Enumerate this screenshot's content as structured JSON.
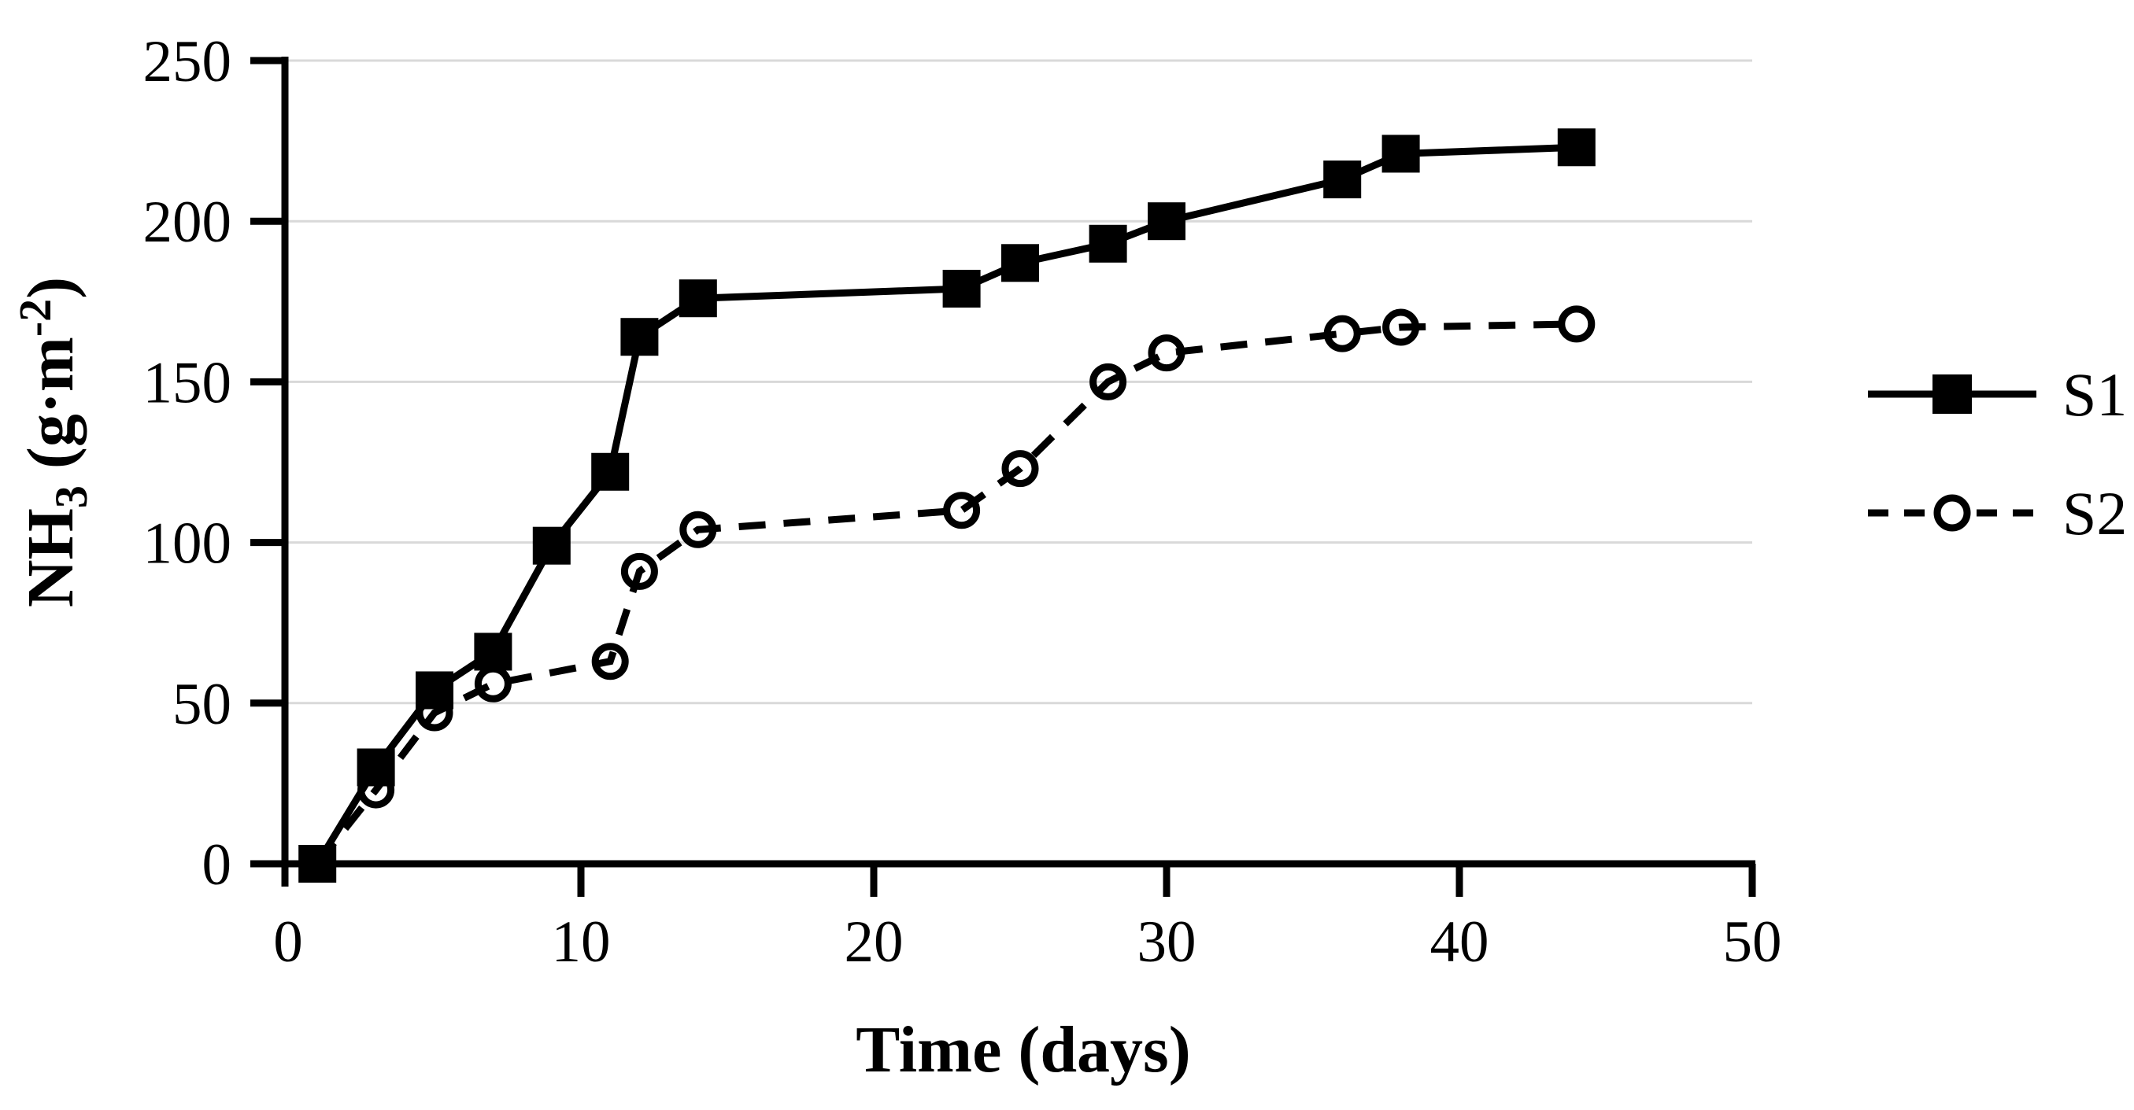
{
  "figure": {
    "background_color": "#ffffff",
    "ink_color": "#000000",
    "gridline_color": "#d9d9d9"
  },
  "chart_data": {
    "type": "line",
    "title": "",
    "xlabel": "Time (days)",
    "ylabel": "NH3 (g·m-2)",
    "ylabel_rich": {
      "prefix": "NH",
      "subscript": "3",
      "middle": " (g·m",
      "superscript": "-2",
      "suffix": ")"
    },
    "xlim": [
      0,
      50
    ],
    "ylim": [
      0,
      250
    ],
    "x_ticks": [
      0,
      10,
      20,
      30,
      40,
      50
    ],
    "y_ticks": [
      0,
      50,
      100,
      150,
      200,
      250
    ],
    "grid": "horizontal-only",
    "legend_position": "right-middle",
    "series": [
      {
        "name": "S1",
        "line_style": "solid",
        "marker": "filled-square",
        "color": "#000000",
        "x": [
          1,
          3,
          5,
          7,
          9,
          11,
          12,
          14,
          23,
          25,
          28,
          30,
          36,
          38,
          44
        ],
        "y": [
          0,
          30,
          54,
          66,
          99,
          122,
          164,
          176,
          179,
          187,
          193,
          200,
          213,
          221,
          223
        ]
      },
      {
        "name": "S2",
        "line_style": "dashed",
        "marker": "open-circle",
        "color": "#000000",
        "x": [
          1,
          3,
          5,
          7,
          11,
          12,
          14,
          23,
          25,
          28,
          30,
          36,
          38,
          44
        ],
        "y": [
          0,
          23,
          47,
          56,
          63,
          91,
          104,
          110,
          123,
          150,
          159,
          165,
          167,
          168
        ]
      }
    ]
  }
}
